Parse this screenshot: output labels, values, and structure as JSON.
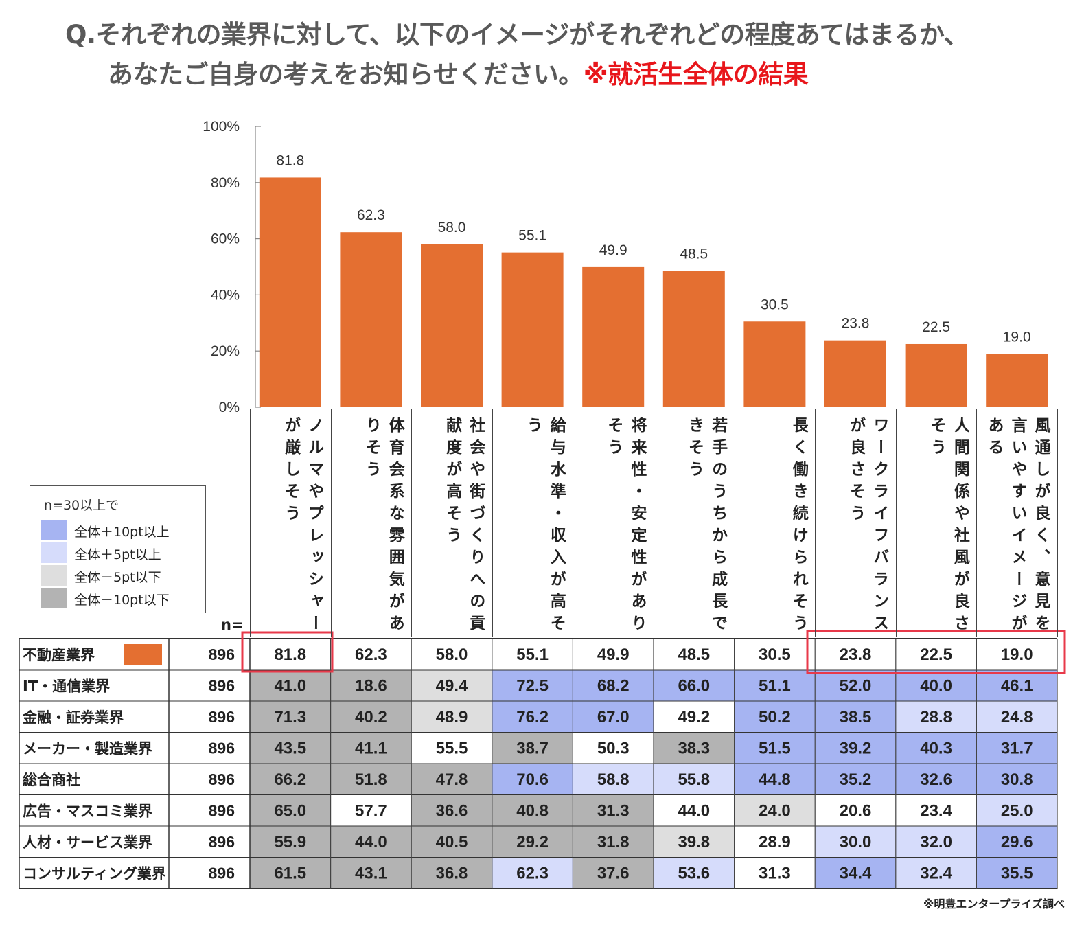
{
  "title": {
    "line1": "Q.それぞれの業界に対して、以下のイメージがそれぞれどの程度あてはまるか、",
    "line2_plain": "あなたご自身の考えをお知らせください。",
    "line2_highlight": "※就活生全体の結果"
  },
  "colors": {
    "bar": "#e46f31",
    "plus10": "#a6b4f2",
    "plus5": "#d6dcfb",
    "minus5": "#dedede",
    "minus10": "#b3b3b3",
    "highlight_box": "#e8394a"
  },
  "legend": {
    "title": "n=30以上で",
    "items": [
      {
        "key": "plus10",
        "label": "全体＋10pt以上"
      },
      {
        "key": "plus5",
        "label": "全体＋5pt以上"
      },
      {
        "key": "minus5",
        "label": "全体－5pt以下"
      },
      {
        "key": "minus10",
        "label": "全体－10pt以下"
      }
    ]
  },
  "n_label": "n=",
  "source": "※明豊エンタープライズ調べ",
  "chart_data": {
    "type": "bar",
    "categories": [
      "ノルマやプレッシャーが厳しそう",
      "体育会系な雰囲気がありそう",
      "社会や街づくりへの貢献度が高そう",
      "給与水準・収入が高そう",
      "将来性・安定性がありそう",
      "若手のうちから成長できそう",
      "長く働き続けられそう",
      "ワークライフバランスが良さそう",
      "人間関係や社風が良さそう",
      "風通しが良く、意見を言いやすいイメージがある"
    ],
    "values": [
      81.8,
      62.3,
      58.0,
      55.1,
      49.9,
      48.5,
      30.5,
      23.8,
      22.5,
      19.0
    ],
    "value_labels": [
      "81.8",
      "62.3",
      "58.0",
      "55.1",
      "49.9",
      "48.5",
      "30.5",
      "23.8",
      "22.5",
      "19.0"
    ],
    "yticks": [
      "0%",
      "20%",
      "40%",
      "60%",
      "80%",
      "100%"
    ],
    "ylim": [
      0,
      100
    ]
  },
  "table": {
    "rows": [
      {
        "name": "不動産業界",
        "n": "896",
        "swatch": true,
        "values": [
          "81.8",
          "62.3",
          "58.0",
          "55.1",
          "49.9",
          "48.5",
          "30.5",
          "23.8",
          "22.5",
          "19.0"
        ],
        "shade": [
          "",
          "",
          "",
          "",
          "",
          "",
          "",
          "",
          "",
          ""
        ]
      },
      {
        "name": "IT・通信業界",
        "n": "896",
        "values": [
          "41.0",
          "18.6",
          "49.4",
          "72.5",
          "68.2",
          "66.0",
          "51.1",
          "52.0",
          "40.0",
          "46.1"
        ],
        "shade": [
          "minus10",
          "minus10",
          "minus5",
          "plus10",
          "plus10",
          "plus10",
          "plus10",
          "plus10",
          "plus10",
          "plus10"
        ]
      },
      {
        "name": "金融・証券業界",
        "n": "896",
        "values": [
          "71.3",
          "40.2",
          "48.9",
          "76.2",
          "67.0",
          "49.2",
          "50.2",
          "38.5",
          "28.8",
          "24.8"
        ],
        "shade": [
          "minus10",
          "minus10",
          "minus5",
          "plus10",
          "plus10",
          "",
          "plus10",
          "plus10",
          "plus5",
          "plus5"
        ]
      },
      {
        "name": "メーカー・製造業界",
        "n": "896",
        "values": [
          "43.5",
          "41.1",
          "55.5",
          "38.7",
          "50.3",
          "38.3",
          "51.5",
          "39.2",
          "40.3",
          "31.7"
        ],
        "shade": [
          "minus10",
          "minus10",
          "",
          "minus10",
          "",
          "minus10",
          "plus10",
          "plus10",
          "plus10",
          "plus10"
        ]
      },
      {
        "name": "総合商社",
        "n": "896",
        "values": [
          "66.2",
          "51.8",
          "47.8",
          "70.6",
          "58.8",
          "55.8",
          "44.8",
          "35.2",
          "32.6",
          "30.8"
        ],
        "shade": [
          "minus10",
          "minus10",
          "minus10",
          "plus10",
          "plus5",
          "plus5",
          "plus10",
          "plus10",
          "plus10",
          "plus10"
        ]
      },
      {
        "name": "広告・マスコミ業界",
        "n": "896",
        "values": [
          "65.0",
          "57.7",
          "36.6",
          "40.8",
          "31.3",
          "44.0",
          "24.0",
          "20.6",
          "23.4",
          "25.0"
        ],
        "shade": [
          "minus10",
          "",
          "minus10",
          "minus10",
          "minus10",
          "",
          "minus5",
          "",
          "",
          "plus5"
        ]
      },
      {
        "name": "人材・サービス業界",
        "n": "896",
        "values": [
          "55.9",
          "44.0",
          "40.5",
          "29.2",
          "31.8",
          "39.8",
          "28.9",
          "30.0",
          "32.0",
          "29.6"
        ],
        "shade": [
          "minus10",
          "minus10",
          "minus10",
          "minus10",
          "minus10",
          "minus5",
          "",
          "plus5",
          "plus5",
          "plus10"
        ]
      },
      {
        "name": "コンサルティング業界",
        "n": "896",
        "values": [
          "61.5",
          "43.1",
          "36.8",
          "62.3",
          "37.6",
          "53.6",
          "31.3",
          "34.4",
          "32.4",
          "35.5"
        ],
        "shade": [
          "minus10",
          "minus10",
          "minus10",
          "plus5",
          "minus10",
          "plus5",
          "",
          "plus10",
          "plus5",
          "plus10"
        ]
      }
    ]
  }
}
